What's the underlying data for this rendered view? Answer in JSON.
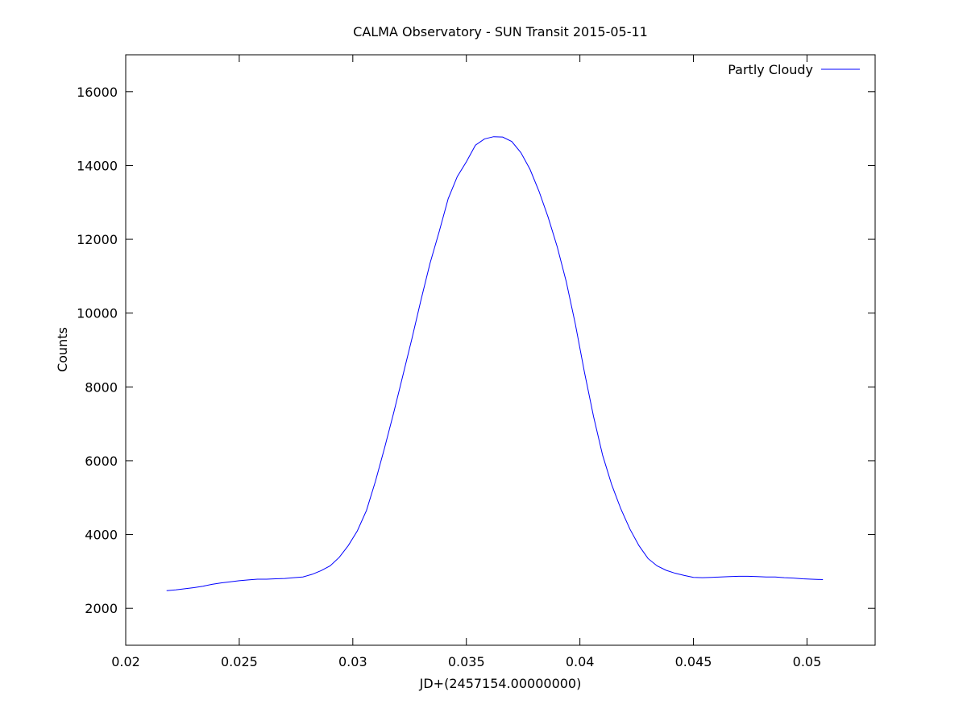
{
  "chart_data": {
    "type": "line",
    "title": "CALMA Observatory - SUN Transit 2015-05-11",
    "xlabel": "JD+(2457154.00000000)",
    "ylabel": "Counts",
    "xlim": [
      0.02,
      0.053
    ],
    "ylim": [
      1000,
      17000
    ],
    "xticks": [
      0.02,
      0.025,
      0.03,
      0.035,
      0.04,
      0.045,
      0.05
    ],
    "xtick_labels": [
      "0.02",
      "0.025",
      "0.03",
      "0.035",
      "0.04",
      "0.045",
      "0.05"
    ],
    "yticks": [
      2000,
      4000,
      6000,
      8000,
      10000,
      12000,
      14000,
      16000
    ],
    "ytick_labels": [
      "2000",
      "4000",
      "6000",
      "8000",
      "10000",
      "12000",
      "14000",
      "16000"
    ],
    "grid": false,
    "legend": "top-right",
    "series": [
      {
        "name": "Partly Cloudy",
        "color": "#0000ff",
        "x": [
          0.0218,
          0.0222,
          0.0226,
          0.023,
          0.0234,
          0.0238,
          0.0242,
          0.0246,
          0.025,
          0.0254,
          0.0258,
          0.0262,
          0.0266,
          0.027,
          0.0274,
          0.0278,
          0.0282,
          0.0286,
          0.029,
          0.0294,
          0.0298,
          0.0302,
          0.0306,
          0.031,
          0.0314,
          0.0318,
          0.0322,
          0.0326,
          0.033,
          0.0334,
          0.0338,
          0.0342,
          0.0346,
          0.035,
          0.0354,
          0.0358,
          0.0362,
          0.0366,
          0.037,
          0.0374,
          0.0378,
          0.0382,
          0.0386,
          0.039,
          0.0394,
          0.0398,
          0.0402,
          0.0406,
          0.041,
          0.0414,
          0.0418,
          0.0422,
          0.0426,
          0.043,
          0.0434,
          0.0438,
          0.0442,
          0.0446,
          0.045,
          0.0454,
          0.0458,
          0.0462,
          0.0466,
          0.047,
          0.0474,
          0.0478,
          0.0482,
          0.0486,
          0.049,
          0.0494,
          0.0498,
          0.0502,
          0.0507
        ],
        "y": [
          2480,
          2500,
          2530,
          2560,
          2600,
          2650,
          2690,
          2720,
          2750,
          2770,
          2790,
          2790,
          2800,
          2810,
          2830,
          2850,
          2920,
          3020,
          3150,
          3380,
          3700,
          4100,
          4650,
          5450,
          6350,
          7300,
          8300,
          9300,
          10350,
          11350,
          12200,
          13100,
          13700,
          14100,
          14550,
          14720,
          14780,
          14770,
          14650,
          14350,
          13900,
          13300,
          12600,
          11800,
          10850,
          9700,
          8400,
          7200,
          6150,
          5350,
          4700,
          4150,
          3700,
          3350,
          3150,
          3030,
          2950,
          2890,
          2840,
          2830,
          2840,
          2850,
          2860,
          2870,
          2870,
          2860,
          2850,
          2850,
          2830,
          2820,
          2800,
          2790,
          2780
        ]
      }
    ]
  }
}
